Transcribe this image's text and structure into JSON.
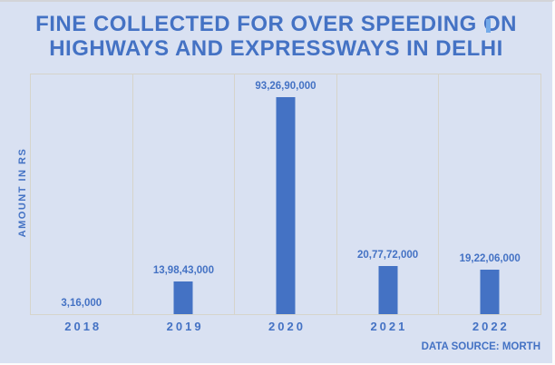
{
  "header": {
    "title_line1": "FINE COLLECTED FOR OVER SPEEDING ON",
    "title_line2": "HIGHWAYS AND EXPRESSWAYS IN DELHI"
  },
  "chart_data": {
    "type": "bar",
    "title": "FINE COLLECTED FOR OVER SPEEDING ON HIGHWAYS AND EXPRESSWAYS IN DELHI",
    "categories": [
      "2018",
      "2019",
      "2020",
      "2021",
      "2022"
    ],
    "values": [
      316000,
      139843000,
      932690000,
      207772000,
      192206000
    ],
    "value_labels": [
      "3,16,000",
      "13,98,43,000",
      "93,26,90,000",
      "20,77,72,000",
      "19,22,06,000"
    ],
    "xlabel": "",
    "ylabel": "AMOUNT IN RS",
    "ylim": [
      0,
      1030000000
    ],
    "grid": "vertical category separators only",
    "legend": "none",
    "source_note": "DATA SOURCE: MORTH"
  },
  "colors": {
    "background": "#d9e1f2",
    "bar": "#4472c4",
    "text": "#4472c4",
    "gridline": "#d6d4cb"
  }
}
